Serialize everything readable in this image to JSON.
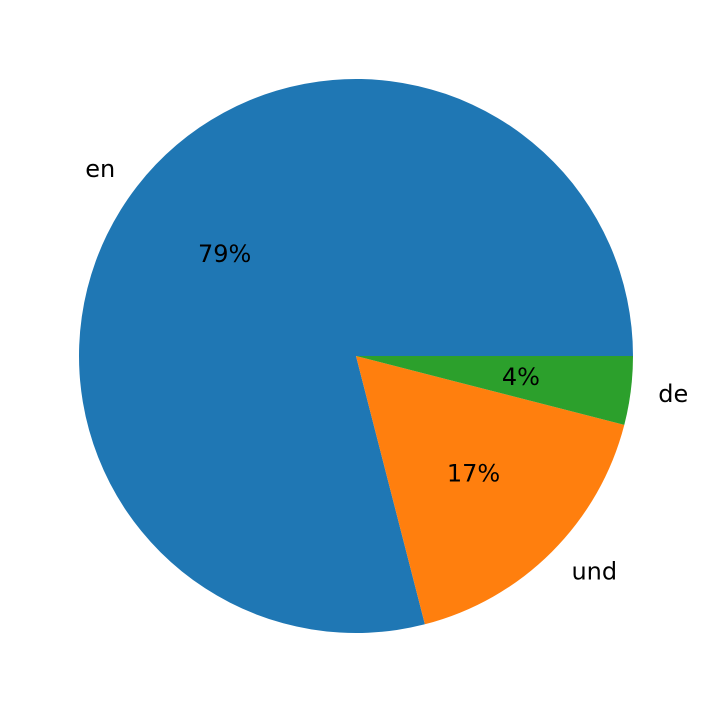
{
  "chart_data": {
    "type": "pie",
    "title": "",
    "categories": [
      "en",
      "und",
      "de"
    ],
    "values": [
      79,
      17,
      4
    ],
    "percent_labels": [
      "79%",
      "17%",
      "4%"
    ],
    "colors": [
      "#1f77b4",
      "#ff7f0e",
      "#2ca02c"
    ],
    "start_angle_deg": 0,
    "direction": "counterclockwise",
    "legend": "none"
  }
}
